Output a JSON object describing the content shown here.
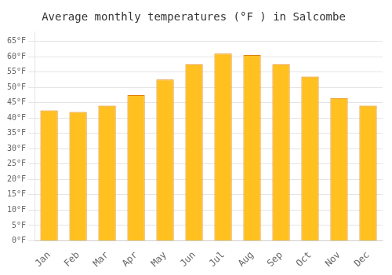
{
  "chart_data": {
    "type": "bar",
    "title": "Average monthly temperatures (°F ) in Salcombe",
    "categories": [
      "Jan",
      "Feb",
      "Mar",
      "Apr",
      "May",
      "Jun",
      "Jul",
      "Aug",
      "Sep",
      "Oct",
      "Nov",
      "Dec"
    ],
    "values": [
      42.5,
      42.0,
      44.0,
      47.5,
      52.5,
      57.5,
      61.0,
      60.5,
      57.5,
      53.5,
      46.5,
      44.0
    ],
    "color": "#FFC020",
    "ylim": [
      0,
      68
    ],
    "yticks": [
      {
        "value": 0,
        "label": "0°F"
      },
      {
        "value": 5,
        "label": "5°F"
      },
      {
        "value": 10,
        "label": "10°F"
      },
      {
        "value": 15,
        "label": "15°F"
      },
      {
        "value": 20,
        "label": "20°F"
      },
      {
        "value": 25,
        "label": "25°F"
      },
      {
        "value": 30,
        "label": "30°F"
      },
      {
        "value": 35,
        "label": "35°F"
      },
      {
        "value": 40,
        "label": "40°F"
      },
      {
        "value": 45,
        "label": "45°F"
      },
      {
        "value": 50,
        "label": "50°F"
      },
      {
        "value": 55,
        "label": "55°F"
      },
      {
        "value": 60,
        "label": "60°F"
      },
      {
        "value": 65,
        "label": "65°F"
      }
    ],
    "grid": true
  }
}
